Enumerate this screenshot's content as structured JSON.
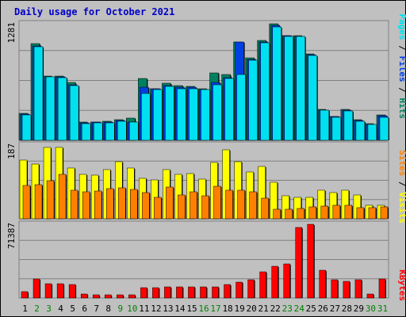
{
  "title": "Daily usage for October 2021",
  "colors": {
    "background": "#c0c0c0",
    "pages": "#00e0f0",
    "files": "#0040e0",
    "hits": "#008060",
    "visits": "#ffff00",
    "sites": "#ff8000",
    "kbytes": "#ff0000",
    "weekend_label": "#008000",
    "weekday_label": "#000000"
  },
  "legend_top": {
    "pages": "Pages",
    "files": "Files",
    "hits": "Hits",
    "sep": " / "
  },
  "legend_mid": {
    "sites": "Sites",
    "visits": "Visits",
    "sep": " / "
  },
  "legend_bottom": {
    "kbytes": "KBytes"
  },
  "chart_data": [
    {
      "type": "bar",
      "ylabel_max": "1281",
      "ylim": [
        0,
        1281
      ],
      "categories": [
        "1",
        "2",
        "3",
        "4",
        "5",
        "6",
        "7",
        "8",
        "9",
        "10",
        "11",
        "12",
        "13",
        "14",
        "15",
        "16",
        "17",
        "18",
        "19",
        "20",
        "21",
        "22",
        "23",
        "24",
        "25",
        "26",
        "27",
        "28",
        "29",
        "30",
        "31"
      ],
      "weekend_days": [
        "2",
        "3",
        "9",
        "10",
        "16",
        "17",
        "23",
        "24",
        "30",
        "31"
      ],
      "series": [
        {
          "name": "Hits",
          "values": [
            300,
            1060,
            710,
            710,
            640,
            200,
            200,
            210,
            230,
            240,
            680,
            570,
            630,
            600,
            590,
            570,
            740,
            720,
            1080,
            910,
            1100,
            1281,
            1150,
            1150,
            950,
            340,
            260,
            340,
            230,
            180,
            280
          ]
        },
        {
          "name": "Files",
          "values": [
            290,
            1040,
            700,
            700,
            610,
            190,
            200,
            200,
            220,
            200,
            580,
            570,
            600,
            580,
            580,
            560,
            640,
            690,
            1080,
            890,
            1080,
            1260,
            1150,
            1140,
            940,
            330,
            260,
            330,
            220,
            170,
            270
          ]
        },
        {
          "name": "Pages",
          "values": [
            280,
            1030,
            700,
            690,
            600,
            180,
            190,
            190,
            210,
            200,
            510,
            560,
            590,
            570,
            570,
            560,
            610,
            680,
            720,
            880,
            1070,
            1250,
            1140,
            1140,
            930,
            330,
            250,
            320,
            210,
            170,
            250
          ]
        }
      ]
    },
    {
      "type": "bar",
      "ylabel_max": "187",
      "ylim": [
        0,
        187
      ],
      "categories": [
        "1",
        "2",
        "3",
        "4",
        "5",
        "6",
        "7",
        "8",
        "9",
        "10",
        "11",
        "12",
        "13",
        "14",
        "15",
        "16",
        "17",
        "18",
        "19",
        "20",
        "21",
        "22",
        "23",
        "24",
        "25",
        "26",
        "27",
        "28",
        "29",
        "30",
        "31"
      ],
      "series": [
        {
          "name": "Visits",
          "values": [
            148,
            138,
            180,
            180,
            128,
            112,
            110,
            125,
            145,
            128,
            102,
            98,
            125,
            112,
            115,
            100,
            142,
            175,
            145,
            118,
            133,
            92,
            58,
            55,
            55,
            73,
            67,
            72,
            61,
            35,
            35
          ]
        },
        {
          "name": "Sites",
          "values": [
            85,
            87,
            97,
            112,
            72,
            68,
            70,
            77,
            79,
            75,
            67,
            55,
            80,
            61,
            68,
            58,
            83,
            72,
            72,
            68,
            52,
            25,
            24,
            27,
            30,
            32,
            34,
            35,
            28,
            28,
            30
          ]
        }
      ]
    },
    {
      "type": "bar",
      "ylabel_max": "71387",
      "ylim": [
        0,
        71387
      ],
      "categories": [
        "1",
        "2",
        "3",
        "4",
        "5",
        "6",
        "7",
        "8",
        "9",
        "10",
        "11",
        "12",
        "13",
        "14",
        "15",
        "16",
        "17",
        "18",
        "19",
        "20",
        "21",
        "22",
        "23",
        "24",
        "25",
        "26",
        "27",
        "28",
        "29",
        "30",
        "31"
      ],
      "series": [
        {
          "name": "KBytes",
          "values": [
            6200,
            18500,
            13500,
            13500,
            12700,
            3900,
            3400,
            3400,
            3400,
            3400,
            9800,
            9800,
            10500,
            10500,
            10500,
            10500,
            10500,
            12700,
            15100,
            17700,
            25700,
            31000,
            33000,
            68000,
            71387,
            26800,
            17600,
            15900,
            17600,
            3900,
            18300
          ]
        }
      ]
    }
  ]
}
